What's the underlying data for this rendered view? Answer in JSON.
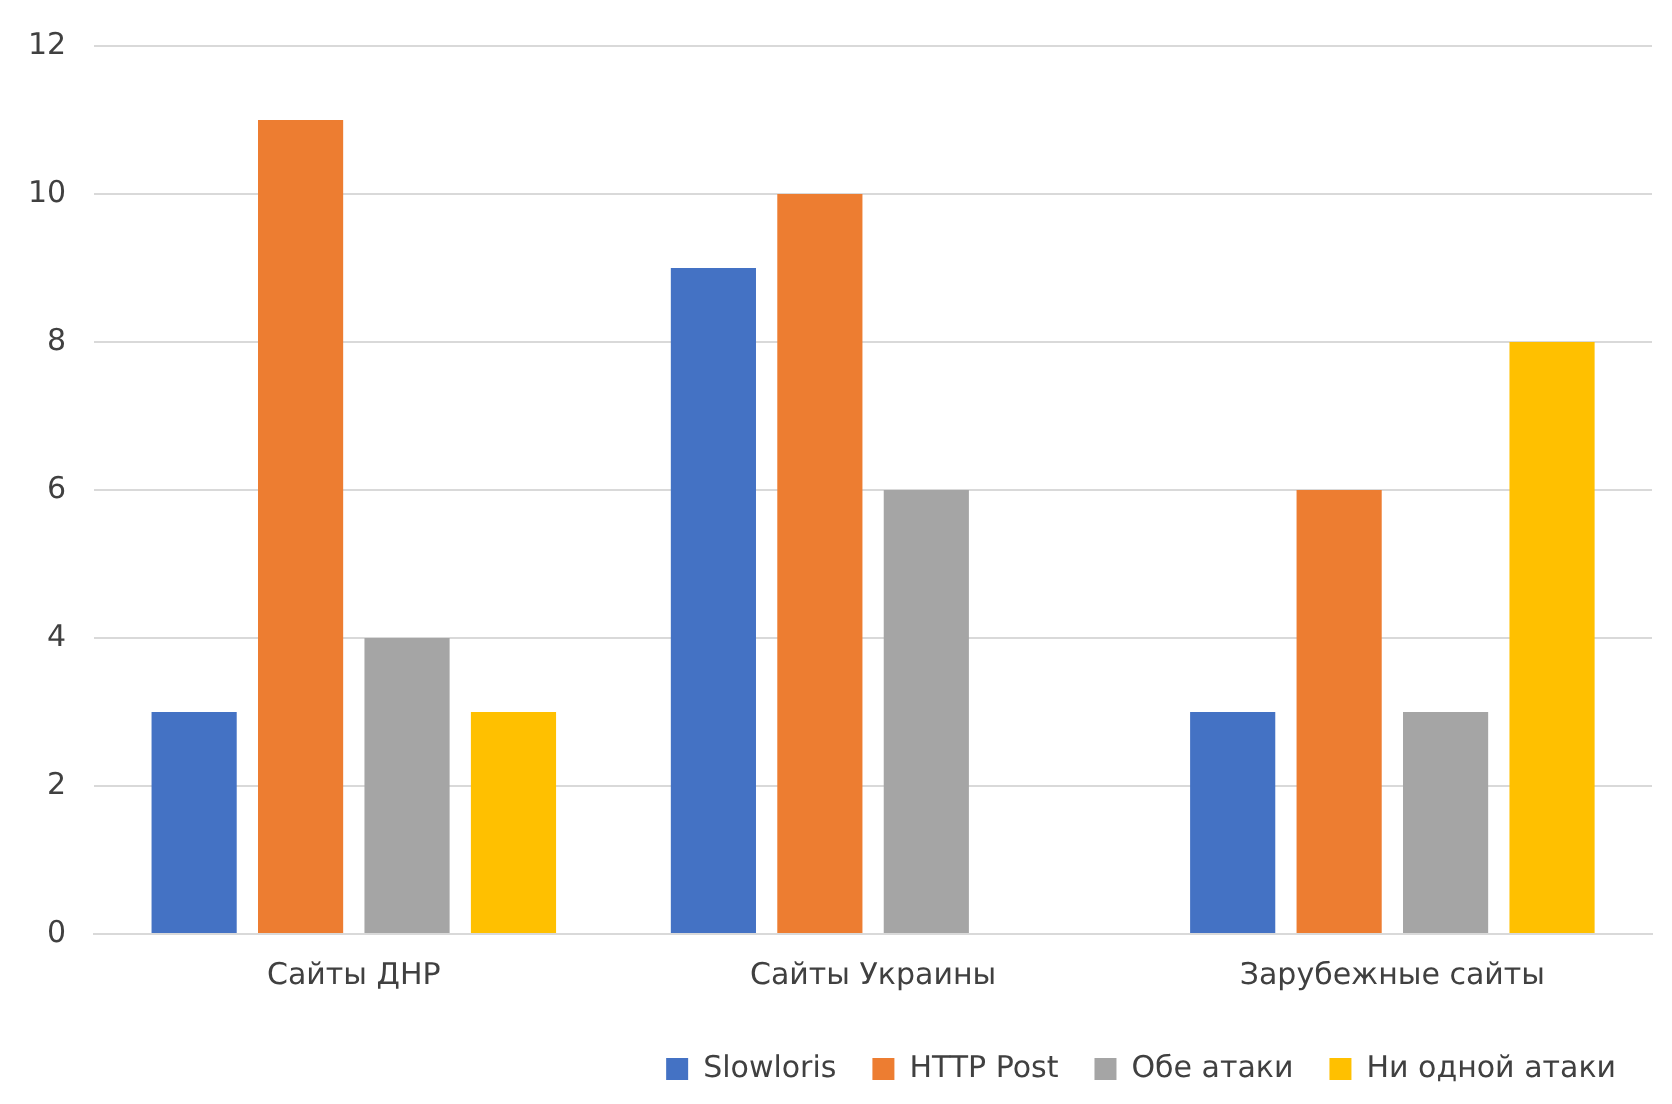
{
  "chart_data": {
    "type": "bar",
    "categories": [
      "Сайты ДНР",
      "Сайты Украины",
      "Зарубежные сайты"
    ],
    "series": [
      {
        "name": "Slowloris",
        "color": "#4472c4",
        "values": [
          3,
          9,
          3
        ]
      },
      {
        "name": "HTTP Post",
        "color": "#ed7d31",
        "values": [
          11,
          10,
          6
        ]
      },
      {
        "name": "Обе атаки",
        "color": "#a5a5a5",
        "values": [
          4,
          6,
          3
        ]
      },
      {
        "name": "Ни одной атаки",
        "color": "#ffc000",
        "values": [
          3,
          0,
          8
        ]
      }
    ],
    "ylim": [
      0,
      12
    ],
    "yticks": [
      0,
      2,
      4,
      6,
      8,
      10,
      12
    ],
    "grid": "y",
    "legend": "bottom right"
  }
}
